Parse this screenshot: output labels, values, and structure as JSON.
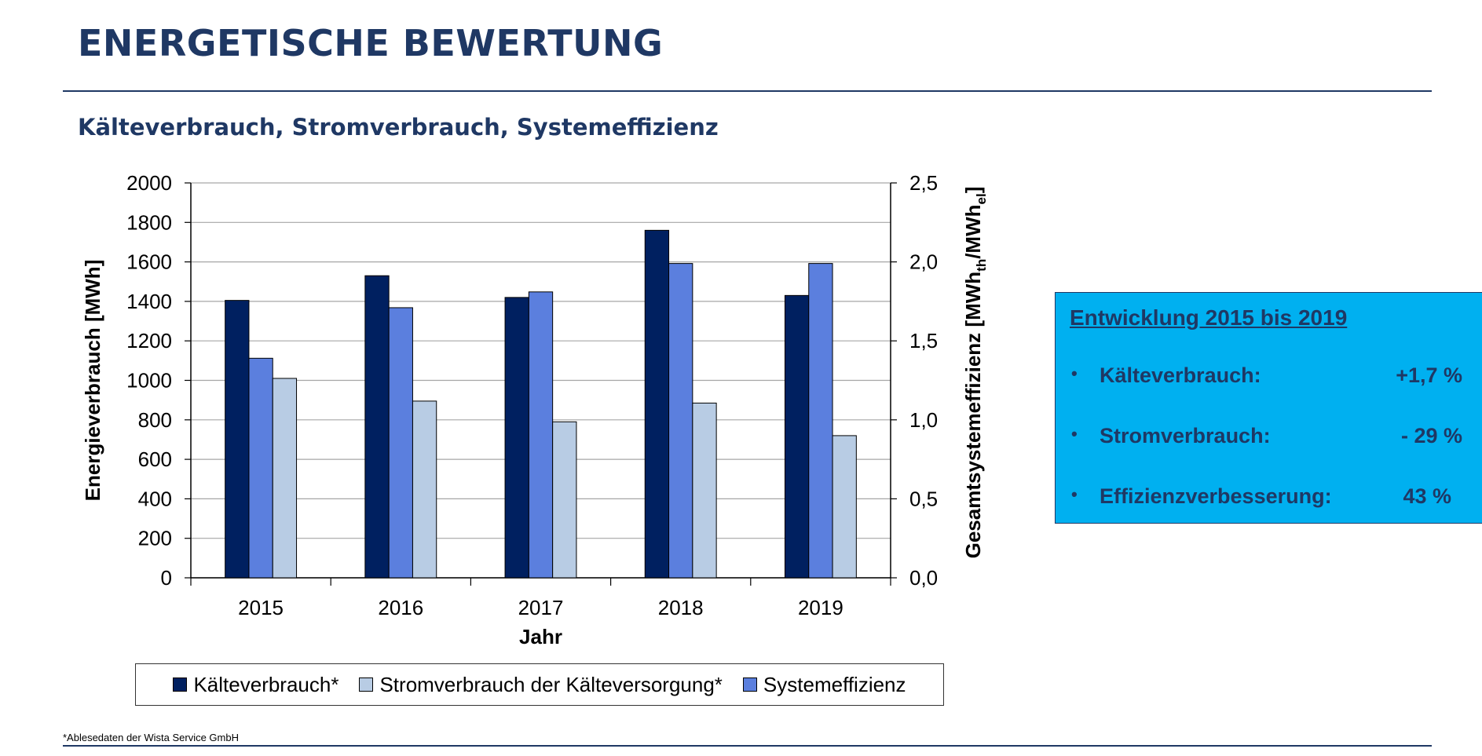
{
  "header": {
    "title": "ENERGETISCHE BEWERTUNG",
    "subtitle": "Kälteverbrauch, Stromverbrauch, Systemeffizienz"
  },
  "chart_data": {
    "type": "bar",
    "categories": [
      "2015",
      "2016",
      "2017",
      "2018",
      "2019"
    ],
    "series": [
      {
        "name": "Kälteverbrauch*",
        "axis": "left",
        "color": "#002060",
        "values": [
          1405,
          1530,
          1420,
          1760,
          1430
        ]
      },
      {
        "name": "Systemeffizienz",
        "axis": "right",
        "color": "#5b7fde",
        "values": [
          1.39,
          1.71,
          1.81,
          1.99,
          1.99
        ]
      },
      {
        "name": "Stromverbrauch der Kälteversorgung*",
        "axis": "left",
        "color": "#b8cce4",
        "values": [
          1010,
          895,
          790,
          885,
          720
        ]
      }
    ],
    "xlabel": "Jahr",
    "ylabel": "Energieverbrauch [MWh]",
    "y2label": "Gesamtsystemeffizienz [MWh",
    "y2label_sub1": "th",
    "y2label_mid": "/MWh",
    "y2label_sub2": "el",
    "y2label_end": "]",
    "ylim": [
      0,
      2000
    ],
    "y2lim": [
      0,
      2.5
    ],
    "yticks": [
      "0",
      "200",
      "400",
      "600",
      "800",
      "1000",
      "1200",
      "1400",
      "1600",
      "1800",
      "2000"
    ],
    "y2ticks": [
      "0,0",
      "0,5",
      "1,0",
      "1,5",
      "2,0",
      "2,5"
    ],
    "grid": true,
    "legend_order": [
      "Kälteverbrauch*",
      "Stromverbrauch der Kälteversorgung*",
      "Systemeffizienz"
    ],
    "legend_position": "bottom"
  },
  "infobox": {
    "heading": "Entwicklung 2015 bis 2019",
    "bullet": "•",
    "items": [
      {
        "label": "Kälteverbrauch:",
        "value": "+1,7 %"
      },
      {
        "label": "Stromverbrauch:",
        "value": "- 29 %"
      },
      {
        "label": "Effizienzverbesserung:",
        "value": "43 %"
      }
    ]
  },
  "footnote": "*Ablesedaten der Wista Service GmbH"
}
